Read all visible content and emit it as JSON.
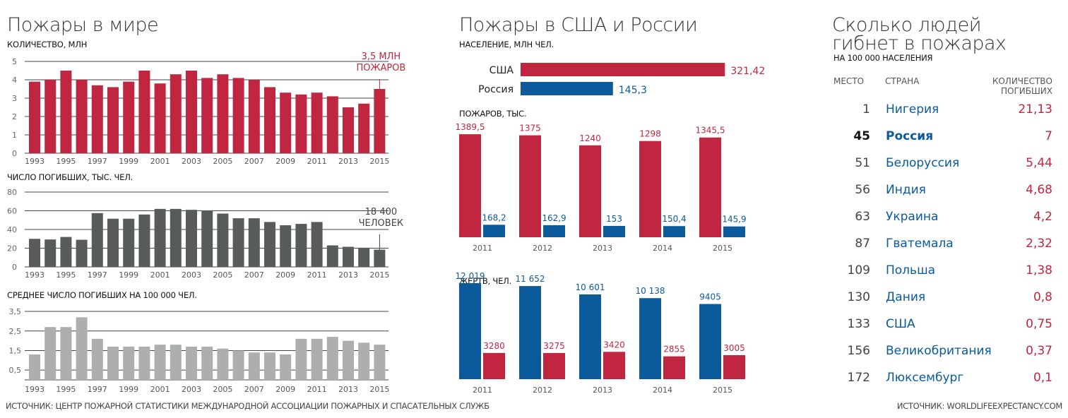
{
  "colors": {
    "red": "#c0263f",
    "blue": "#0a5a9c",
    "dark": "#575b5b",
    "light": "#adafae",
    "grid": "#444"
  },
  "left": {
    "title": "Пожары в мире",
    "source": "ИСТОЧНИК: ЦЕНТР ПОЖАРНОЙ СТАТИСТИКИ МЕЖДУНАРОДНОЙ АССОЦИАЦИИ ПОЖАРНЫХ И СПАСАТЕЛЬНЫХ СЛУЖБ"
  },
  "middle": {
    "title": "Пожары в США и России"
  },
  "right": {
    "title_line1": "Сколько людей",
    "title_line2": "гибнет в пожарах",
    "subtitle": "НА 100 000 НАСЕЛЕНИЯ",
    "headers": {
      "rank": "МЕСТО",
      "country": "СТРАНА",
      "value_line1": "КОЛИЧЕСТВО",
      "value_line2": "ПОГИБШИХ"
    },
    "rows": [
      {
        "rank": "1",
        "country": "Нигерия",
        "value": "21,13"
      },
      {
        "rank": "45",
        "country": "Россия",
        "value": "7",
        "highlight": true
      },
      {
        "rank": "51",
        "country": "Белоруссия",
        "value": "5,44"
      },
      {
        "rank": "56",
        "country": "Индия",
        "value": "4,68"
      },
      {
        "rank": "63",
        "country": "Украина",
        "value": "4,2"
      },
      {
        "rank": "87",
        "country": "Гватемала",
        "value": "2,32"
      },
      {
        "rank": "109",
        "country": "Польша",
        "value": "1,38"
      },
      {
        "rank": "130",
        "country": "Дания",
        "value": "0,8"
      },
      {
        "rank": "133",
        "country": "США",
        "value": "0,75"
      },
      {
        "rank": "156",
        "country": "Великобритания",
        "value": "0,37"
      },
      {
        "rank": "172",
        "country": "Люксембург",
        "value": "0,1"
      }
    ],
    "source": "ИСТОЧНИК: WORLDLIFEEXPECTANCY.COM"
  },
  "chart_data": [
    {
      "type": "bar",
      "title": "КОЛИЧЕСТВО, МЛН",
      "years": [
        1993,
        1994,
        1995,
        1996,
        1997,
        1998,
        1999,
        2000,
        2001,
        2002,
        2003,
        2004,
        2005,
        2006,
        2007,
        2008,
        2009,
        2010,
        2011,
        2012,
        2013,
        2014,
        2015
      ],
      "values": [
        3.9,
        4.0,
        4.5,
        4.0,
        3.7,
        3.6,
        3.9,
        4.5,
        3.8,
        4.3,
        4.5,
        4.1,
        4.3,
        4.1,
        4.0,
        3.6,
        3.3,
        3.2,
        3.3,
        3.1,
        2.5,
        2.7,
        3.5
      ],
      "yticks": [
        "0",
        "1",
        "2",
        "3",
        "4",
        "5"
      ],
      "ylim": [
        0,
        5
      ],
      "annotation_line1": "3,5 МЛН",
      "annotation_line2": "ПОЖАРОВ"
    },
    {
      "type": "bar",
      "title": "ЧИСЛО ПОГИБШИХ, ТЫС. ЧЕЛ.",
      "years": [
        1993,
        1994,
        1995,
        1996,
        1997,
        1998,
        1999,
        2000,
        2001,
        2002,
        2003,
        2004,
        2005,
        2006,
        2007,
        2008,
        2009,
        2010,
        2011,
        2012,
        2013,
        2014,
        2015
      ],
      "values": [
        30,
        29.3,
        32,
        29,
        57.5,
        51.5,
        51.5,
        56,
        62,
        62,
        61,
        60,
        57,
        52,
        52,
        48,
        44.5,
        46,
        48,
        23,
        21.5,
        20.5,
        18.4
      ],
      "yticks": [
        "0",
        "20",
        "40",
        "60",
        "80"
      ],
      "ylim": [
        0,
        80
      ],
      "annotation_line1": "18 400",
      "annotation_line2": "ЧЕЛОВЕК"
    },
    {
      "type": "bar",
      "title": "СРЕДНЕЕ ЧИСЛО ПОГИБШИХ НА 100 000 ЧЕЛ.",
      "years": [
        1993,
        1994,
        1995,
        1996,
        1997,
        1998,
        1999,
        2000,
        2001,
        2002,
        2003,
        2004,
        2005,
        2006,
        2007,
        2008,
        2009,
        2010,
        2011,
        2012,
        2013,
        2014,
        2015
      ],
      "values": [
        1.3,
        2.7,
        2.7,
        3.2,
        2.1,
        1.7,
        1.7,
        1.7,
        1.8,
        1.8,
        1.7,
        1.7,
        1.6,
        1.5,
        1.4,
        1.4,
        1.3,
        2.1,
        2.1,
        2.2,
        2.0,
        1.9,
        1.8
      ],
      "yticks": [
        "0,5",
        "1,5",
        "2,5",
        "3,5"
      ],
      "ytick_values": [
        0.5,
        1.5,
        2.5,
        3.5
      ],
      "ylim": [
        0,
        3.5
      ]
    },
    {
      "type": "bar",
      "title": "НАСЕЛЕНИЕ, МЛН ЧЕЛ.",
      "orientation": "horizontal",
      "categories": [
        "США",
        "Россия"
      ],
      "values": [
        321.42,
        145.3
      ],
      "labels": [
        "321,42",
        "145,3"
      ]
    },
    {
      "type": "bar",
      "title": "ПОЖАРОВ, ТЫС.",
      "categories": [
        "2011",
        "2012",
        "2013",
        "2014",
        "2015"
      ],
      "series": [
        {
          "name": "США",
          "values": [
            1389.5,
            1375,
            1240,
            1298,
            1345.5
          ],
          "labels": [
            "1389,5",
            "1375",
            "1240",
            "1298",
            "1345,5"
          ]
        },
        {
          "name": "Россия",
          "values": [
            168.2,
            162.9,
            153,
            150.4,
            145.9
          ],
          "labels": [
            "168,2",
            "162,9",
            "153",
            "150,4",
            "145,9"
          ]
        }
      ]
    },
    {
      "type": "bar",
      "title": "ЖЕРТВ, ЧЕЛ.",
      "categories": [
        "2011",
        "2012",
        "2013",
        "2014",
        "2015"
      ],
      "series": [
        {
          "name": "Россия",
          "values": [
            12019,
            11652,
            10601,
            10138,
            9405
          ],
          "labels": [
            "12 019",
            "11 652",
            "10 601",
            "10 138",
            "9405"
          ]
        },
        {
          "name": "США",
          "values": [
            3280,
            3275,
            3420,
            2855,
            3005
          ],
          "labels": [
            "3280",
            "3275",
            "3420",
            "2855",
            "3005"
          ]
        }
      ]
    }
  ]
}
